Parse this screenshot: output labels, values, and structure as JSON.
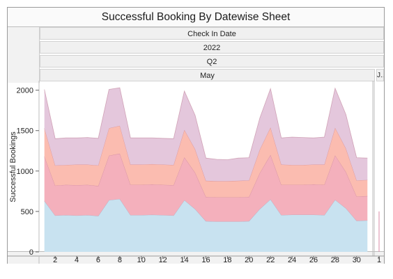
{
  "chart_data": {
    "type": "area",
    "title": "Successful Booking By Datewise Sheet",
    "headers": [
      "Check In Date",
      "2022",
      "Q2"
    ],
    "month_labels": [
      "May",
      "J.."
    ],
    "ylabel": "Successful Bookings",
    "ylim": [
      0,
      2100
    ],
    "y_ticks": [
      0,
      500,
      1000,
      1500,
      2000
    ],
    "x": [
      1,
      2,
      3,
      4,
      5,
      6,
      7,
      8,
      9,
      10,
      11,
      12,
      13,
      14,
      15,
      16,
      17,
      18,
      19,
      20,
      21,
      22,
      23,
      24,
      25,
      26,
      27,
      28,
      29,
      30,
      31
    ],
    "x_tick_labels": [
      "2",
      "4",
      "6",
      "8",
      "10",
      "12",
      "14",
      "16",
      "18",
      "20",
      "22",
      "24",
      "26",
      "28",
      "30"
    ],
    "x_ticks": [
      2,
      4,
      6,
      8,
      10,
      12,
      14,
      16,
      18,
      20,
      22,
      24,
      26,
      28,
      30
    ],
    "june_tick_label": "1",
    "june_value": 500,
    "stacked": true,
    "series": [
      {
        "color": "#c8e2f0",
        "values": [
          630,
          450,
          455,
          450,
          455,
          445,
          640,
          655,
          455,
          455,
          460,
          455,
          450,
          640,
          530,
          380,
          375,
          375,
          375,
          380,
          530,
          650,
          455,
          460,
          460,
          460,
          455,
          645,
          540,
          385,
          390
        ]
      },
      {
        "color": "#f4b0bc",
        "values": [
          550,
          370,
          375,
          375,
          375,
          370,
          550,
          560,
          375,
          375,
          375,
          375,
          375,
          530,
          450,
          300,
          300,
          300,
          300,
          300,
          445,
          550,
          375,
          370,
          370,
          375,
          375,
          550,
          450,
          300,
          300
        ]
      },
      {
        "color": "#fbbcb0",
        "values": [
          350,
          250,
          245,
          255,
          250,
          255,
          340,
          345,
          250,
          250,
          250,
          250,
          250,
          340,
          290,
          200,
          200,
          200,
          205,
          205,
          290,
          340,
          250,
          245,
          245,
          245,
          250,
          340,
          290,
          200,
          200
        ]
      },
      {
        "color": "#e4c7dc",
        "values": [
          480,
          330,
          335,
          330,
          335,
          335,
          480,
          470,
          330,
          330,
          325,
          325,
          325,
          480,
          420,
          280,
          270,
          265,
          280,
          280,
          390,
          480,
          330,
          345,
          340,
          330,
          340,
          490,
          420,
          280,
          270
        ]
      }
    ]
  }
}
